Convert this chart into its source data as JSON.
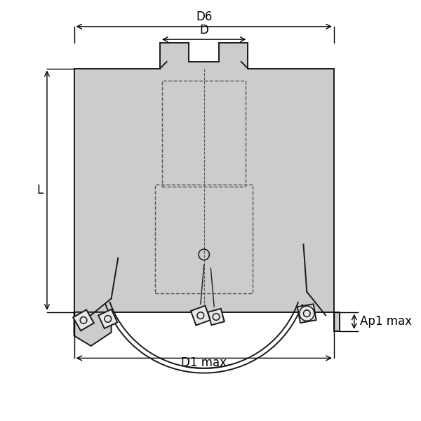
{
  "bg_color": "#ffffff",
  "line_color": "#1a1a1a",
  "body_fill": "#cccccc",
  "body_fill_dark": "#b0b0b0",
  "dashed_color": "#444444",
  "dim_color": "#000000",
  "labels": {
    "D6": "D6",
    "D": "D",
    "L": "L",
    "D1max": "D1 max",
    "Ap1max": "Ap1 max"
  },
  "figsize": [
    6.0,
    6.0
  ],
  "dpi": 100
}
